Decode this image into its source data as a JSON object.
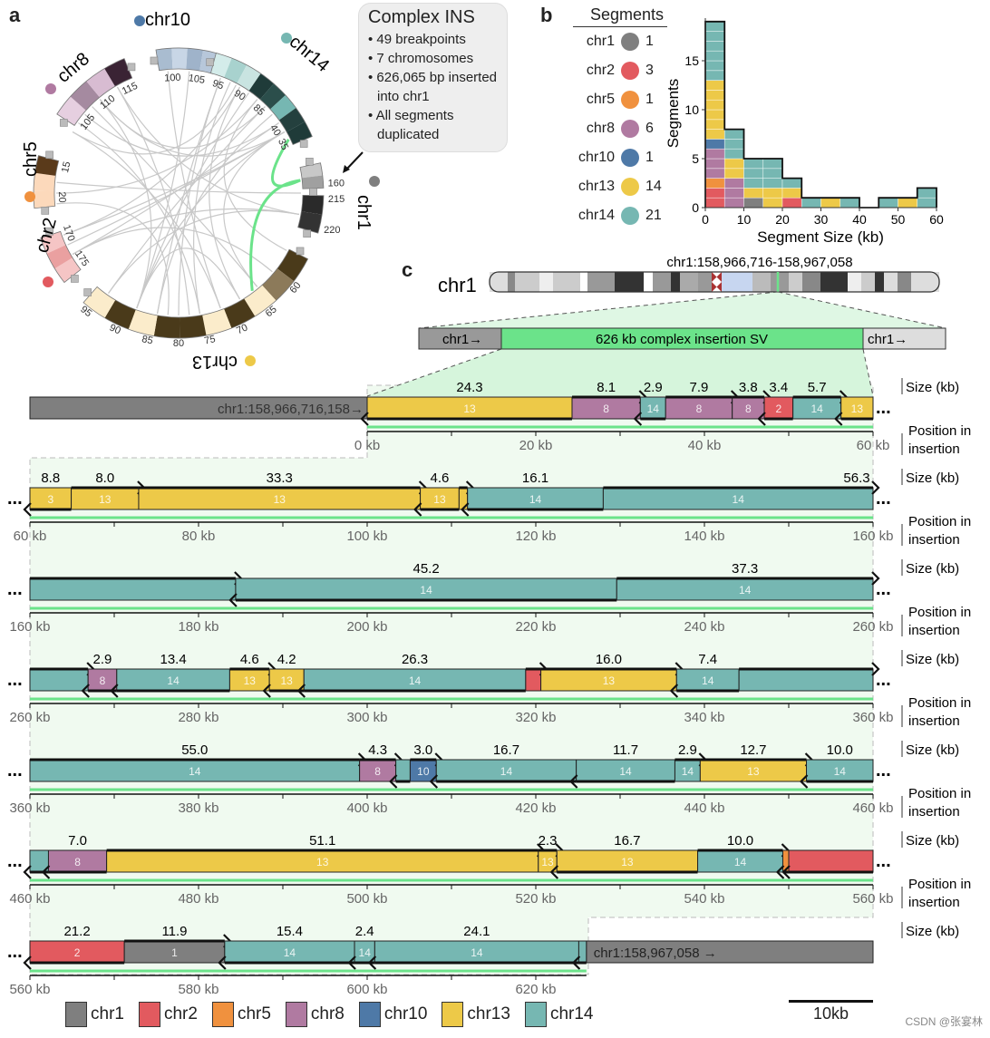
{
  "panel_labels": {
    "a": "a",
    "b": "b",
    "c": "c"
  },
  "colors": {
    "chr1": "#7f7f7f",
    "chr2": "#e25a5f",
    "chr5": "#f0913e",
    "chr8": "#b07aa1",
    "chr10": "#4e79a7",
    "chr13": "#edc948",
    "chr14": "#76b7b2",
    "insertion_green": "#6be38a",
    "chord_gray": "#c8c8c8"
  },
  "circos": {
    "chromosomes": [
      {
        "name": "chr10",
        "ticks": [
          "100",
          "105"
        ]
      },
      {
        "name": "chr14",
        "ticks": [
          "95",
          "90",
          "85",
          "40",
          "35"
        ]
      },
      {
        "name": "chr1",
        "ticks": [
          "160",
          "215",
          "220"
        ]
      },
      {
        "name": "chr13",
        "ticks": [
          "60",
          "65",
          "70",
          "75",
          "80",
          "85",
          "90",
          "95"
        ]
      },
      {
        "name": "chr2",
        "ticks": [
          "175",
          "170"
        ]
      },
      {
        "name": "chr5",
        "ticks": [
          "20",
          "15"
        ]
      },
      {
        "name": "chr8",
        "ticks": [
          "115",
          "110",
          "105"
        ]
      }
    ],
    "info_box": {
      "title": "Complex INS",
      "bullets": [
        "• 49 breakpoints",
        "• 7 chromosomes",
        "• 626,065 bp inserted into chr1",
        "• All segments duplicated"
      ]
    }
  },
  "segments_legend": {
    "title": "Segments",
    "items": [
      {
        "name": "chr1",
        "count": "1"
      },
      {
        "name": "chr2",
        "count": "3"
      },
      {
        "name": "chr5",
        "count": "1"
      },
      {
        "name": "chr8",
        "count": "6"
      },
      {
        "name": "chr10",
        "count": "1"
      },
      {
        "name": "chr13",
        "count": "14"
      },
      {
        "name": "chr14",
        "count": "21"
      }
    ]
  },
  "chart_data": {
    "type": "bar",
    "stacked": true,
    "title": "",
    "xlabel": "Segment Size (kb)",
    "ylabel": "Segments",
    "xlim": [
      0,
      60
    ],
    "ylim": [
      0,
      19
    ],
    "xticks": [
      "0",
      "10",
      "20",
      "30",
      "40",
      "50",
      "60"
    ],
    "yticks": [
      "0",
      "5",
      "10",
      "15"
    ],
    "bin_width": 5,
    "categories": [
      "0-5",
      "5-10",
      "10-15",
      "15-20",
      "20-25",
      "25-30",
      "30-35",
      "35-40",
      "40-45",
      "45-50",
      "50-55",
      "55-60"
    ],
    "series": [
      {
        "name": "chr1",
        "values": [
          0,
          0,
          1,
          0,
          0,
          0,
          0,
          0,
          0,
          0,
          0,
          0
        ]
      },
      {
        "name": "chr2",
        "values": [
          2,
          0,
          0,
          0,
          1,
          0,
          0,
          0,
          0,
          0,
          0,
          0
        ]
      },
      {
        "name": "chr5",
        "values": [
          1,
          0,
          0,
          0,
          0,
          0,
          0,
          0,
          0,
          0,
          0,
          0
        ]
      },
      {
        "name": "chr8",
        "values": [
          3,
          3,
          0,
          0,
          0,
          0,
          0,
          0,
          0,
          0,
          0,
          0
        ]
      },
      {
        "name": "chr10",
        "values": [
          1,
          0,
          0,
          0,
          0,
          0,
          0,
          0,
          0,
          0,
          0,
          0
        ]
      },
      {
        "name": "chr13",
        "values": [
          6,
          2,
          1,
          2,
          1,
          0,
          1,
          0,
          0,
          0,
          1,
          0
        ]
      },
      {
        "name": "chr14",
        "values": [
          6,
          3,
          3,
          3,
          1,
          1,
          0,
          1,
          0,
          1,
          0,
          2
        ]
      }
    ]
  },
  "panel_c": {
    "ideogram_label": "chr1",
    "locus": "chr1:158,966,716-158,967,058",
    "insertion_bar": {
      "left": "chr1→",
      "middle": "626 kb complex insertion SV",
      "right": "chr1→"
    },
    "flank_left": "chr1:158,966,716,158→",
    "flank_right": "chr1:158,967,058 →",
    "size_label": "Size (kb)",
    "position_label": [
      "Position in",
      "insertion"
    ],
    "rows": [
      {
        "start": 0,
        "end": 60,
        "ticks": [
          "0 kb",
          "20 kb",
          "40 kb",
          "60 kb"
        ],
        "segments": [
          {
            "chr": "13",
            "from": 0,
            "to": 24.3,
            "strand": "-",
            "size": "24.3"
          },
          {
            "chr": "8",
            "from": 24.3,
            "to": 32.4,
            "strand": "+",
            "size": "8.1"
          },
          {
            "chr": "14",
            "from": 32.4,
            "to": 35.4,
            "strand": "-",
            "size": "2.9"
          },
          {
            "chr": "8",
            "from": 35.4,
            "to": 43.3,
            "strand": "+",
            "size": "7.9"
          },
          {
            "chr": "8",
            "from": 43.3,
            "to": 47.1,
            "strand": "+",
            "size": "3.8"
          },
          {
            "chr": "2",
            "from": 47.1,
            "to": 50.5,
            "strand": "-",
            "size": "3.4"
          },
          {
            "chr": "14",
            "from": 50.5,
            "to": 56.2,
            "strand": "+",
            "size": "5.7"
          },
          {
            "chr": "13",
            "from": 56.2,
            "to": 60,
            "strand": "-",
            "size": ""
          }
        ]
      },
      {
        "start": 60,
        "end": 160,
        "ticks": [
          "60 kb",
          "80 kb",
          "100 kb",
          "120 kb",
          "140 kb",
          "160 kb"
        ],
        "segments": [
          {
            "chr": "13",
            "from": 60,
            "to": 64.9,
            "strand": "-",
            "size": "8.8",
            "num": "3"
          },
          {
            "chr": "13",
            "from": 64.9,
            "to": 72.9,
            "strand": "+",
            "size": "8.0"
          },
          {
            "chr": "13",
            "from": 72.9,
            "to": 106.3,
            "strand": "+",
            "size": "33.3"
          },
          {
            "chr": "13",
            "from": 106.3,
            "to": 110.9,
            "strand": "-",
            "size": "4.6"
          },
          {
            "chr": "13",
            "from": 110.9,
            "to": 111.9,
            "strand": "+",
            "size": "",
            "num": ""
          },
          {
            "chr": "14",
            "from": 111.9,
            "to": 128.0,
            "strand": "-",
            "size": "16.1"
          },
          {
            "chr": "14",
            "from": 128.0,
            "to": 160,
            "strand": "+",
            "size": "56.3",
            "label_right": true
          }
        ]
      },
      {
        "start": 160,
        "end": 260,
        "ticks": [
          "160 kb",
          "180 kb",
          "200 kb",
          "220 kb",
          "240 kb",
          "260 kb"
        ],
        "segments": [
          {
            "chr": "14",
            "from": 160,
            "to": 184.4,
            "strand": "+",
            "size": "",
            "num": ""
          },
          {
            "chr": "14",
            "from": 184.4,
            "to": 229.6,
            "strand": "-",
            "size": "45.2"
          },
          {
            "chr": "14",
            "from": 229.6,
            "to": 260,
            "strand": "+",
            "size": "37.3"
          }
        ]
      },
      {
        "start": 260,
        "end": 360,
        "ticks": [
          "260 kb",
          "280 kb",
          "300 kb",
          "320 kb",
          "340 kb",
          "360 kb"
        ],
        "segments": [
          {
            "chr": "14",
            "from": 260,
            "to": 266.9,
            "strand": "+",
            "size": "",
            "num": ""
          },
          {
            "chr": "8",
            "from": 266.9,
            "to": 270.3,
            "strand": "-",
            "size": "2.9"
          },
          {
            "chr": "14",
            "from": 270.3,
            "to": 283.7,
            "strand": "-",
            "size": "13.4"
          },
          {
            "chr": "13",
            "from": 283.7,
            "to": 288.4,
            "strand": "+",
            "size": "4.6"
          },
          {
            "chr": "13",
            "from": 288.4,
            "to": 292.5,
            "strand": "-",
            "size": "4.2"
          },
          {
            "chr": "14",
            "from": 292.5,
            "to": 318.8,
            "strand": "-",
            "size": "26.3"
          },
          {
            "chr": "2",
            "from": 318.8,
            "to": 320.6,
            "strand": "+",
            "size": "",
            "num": ""
          },
          {
            "chr": "13",
            "from": 320.6,
            "to": 336.7,
            "strand": "+",
            "size": "16.0"
          },
          {
            "chr": "14",
            "from": 336.7,
            "to": 344.1,
            "strand": "-",
            "size": "7.4"
          },
          {
            "chr": "14",
            "from": 344.1,
            "to": 360,
            "strand": "+",
            "size": "",
            "num": ""
          }
        ]
      },
      {
        "start": 360,
        "end": 460,
        "ticks": [
          "360 kb",
          "380 kb",
          "400 kb",
          "420 kb",
          "440 kb",
          "460 kb"
        ],
        "segments": [
          {
            "chr": "14",
            "from": 360,
            "to": 399.1,
            "strand": "+",
            "size": "55.0"
          },
          {
            "chr": "8",
            "from": 399.1,
            "to": 403.4,
            "strand": "+",
            "size": "4.3"
          },
          {
            "chr": "14",
            "from": 403.4,
            "to": 405.1,
            "strand": "-",
            "size": "",
            "num": ""
          },
          {
            "chr": "10",
            "from": 405.1,
            "to": 408.2,
            "strand": "+",
            "size": "3.0"
          },
          {
            "chr": "14",
            "from": 408.2,
            "to": 424.8,
            "strand": "-",
            "size": "16.7"
          },
          {
            "chr": "14",
            "from": 424.8,
            "to": 436.5,
            "strand": "-",
            "size": "11.7"
          },
          {
            "chr": "14",
            "from": 436.5,
            "to": 439.5,
            "strand": "+",
            "size": "2.9"
          },
          {
            "chr": "13",
            "from": 439.5,
            "to": 452.1,
            "strand": "+",
            "size": "12.7"
          },
          {
            "chr": "14",
            "from": 452.1,
            "to": 460,
            "strand": "-",
            "size": "10.0"
          }
        ]
      },
      {
        "start": 460,
        "end": 560,
        "ticks": [
          "460 kb",
          "480 kb",
          "500 kb",
          "520 kb",
          "540 kb",
          "560 kb"
        ],
        "segments": [
          {
            "chr": "14",
            "from": 460,
            "to": 462.2,
            "strand": "-",
            "size": "",
            "num": ""
          },
          {
            "chr": "8",
            "from": 462.2,
            "to": 469.1,
            "strand": "-",
            "size": "7.0"
          },
          {
            "chr": "13",
            "from": 469.1,
            "to": 520.3,
            "strand": "+",
            "size": "51.1"
          },
          {
            "chr": "13",
            "from": 520.3,
            "to": 522.5,
            "strand": "+",
            "size": "2.3"
          },
          {
            "chr": "13",
            "from": 522.5,
            "to": 539.2,
            "strand": "-",
            "size": "16.7"
          },
          {
            "chr": "14",
            "from": 539.2,
            "to": 549.3,
            "strand": "+",
            "size": "10.0"
          },
          {
            "chr": "5",
            "from": 549.3,
            "to": 550.0,
            "strand": "-",
            "size": "",
            "num": ""
          },
          {
            "chr": "2",
            "from": 550.0,
            "to": 560,
            "strand": "-",
            "size": "",
            "num": ""
          }
        ]
      },
      {
        "start": 560,
        "end": 626,
        "ticks": [
          "560 kb",
          "580 kb",
          "600 kb",
          "620 kb"
        ],
        "segments": [
          {
            "chr": "2",
            "from": 560,
            "to": 571.2,
            "strand": "-",
            "size": "21.2"
          },
          {
            "chr": "1",
            "from": 571.2,
            "to": 583.1,
            "strand": "+",
            "size": "11.9"
          },
          {
            "chr": "14",
            "from": 583.1,
            "to": 598.5,
            "strand": "-",
            "size": "15.4"
          },
          {
            "chr": "14",
            "from": 598.5,
            "to": 600.9,
            "strand": "-",
            "size": "2.4"
          },
          {
            "chr": "14",
            "from": 600.9,
            "to": 625.1,
            "strand": "-",
            "size": "24.1"
          },
          {
            "chr": "14",
            "from": 625.1,
            "to": 626.0,
            "strand": "-",
            "size": "",
            "num": ""
          }
        ]
      }
    ],
    "legend": [
      "chr1",
      "chr2",
      "chr5",
      "chr8",
      "chr10",
      "chr13",
      "chr14"
    ],
    "scale_bar": "10kb"
  },
  "watermark": "CSDN @张宴林"
}
